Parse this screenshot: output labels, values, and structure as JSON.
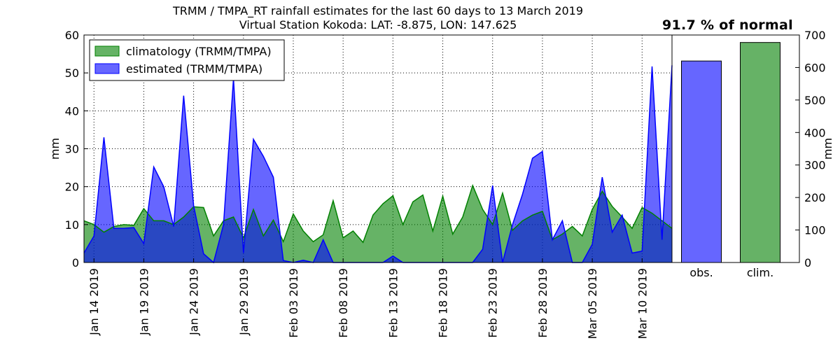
{
  "chart_data": {
    "type": "area",
    "title_line1": "TRMM / TMPA_RT rainfall estimates for the last 60 days to 13 March 2019",
    "title_line2": "Virtual Station Kokoda: LAT: -8.875, LON: 147.625",
    "percent_label": "91.7 % of normal",
    "ylabel_left": "mm",
    "ylabel_right": "mm",
    "ylim_left": [
      0,
      60
    ],
    "yticks_left": [
      "0",
      "10",
      "20",
      "30",
      "40",
      "50",
      "60"
    ],
    "ylim_right": [
      0,
      700
    ],
    "yticks_right": [
      "0",
      "100",
      "200",
      "300",
      "400",
      "500",
      "600",
      "700"
    ],
    "xlim_days": [
      -1,
      58
    ],
    "xticks": [
      {
        "day": 0,
        "label": "Jan 14 2019"
      },
      {
        "day": 5,
        "label": "Jan 19 2019"
      },
      {
        "day": 10,
        "label": "Jan 24 2019"
      },
      {
        "day": 15,
        "label": "Jan 29 2019"
      },
      {
        "day": 20,
        "label": "Feb 03 2019"
      },
      {
        "day": 25,
        "label": "Feb 08 2019"
      },
      {
        "day": 30,
        "label": "Feb 13 2019"
      },
      {
        "day": 35,
        "label": "Feb 18 2019"
      },
      {
        "day": 40,
        "label": "Feb 23 2019"
      },
      {
        "day": 45,
        "label": "Feb 28 2019"
      },
      {
        "day": 50,
        "label": "Mar 05 2019"
      },
      {
        "day": 55,
        "label": "Mar 10 2019"
      }
    ],
    "legend": [
      "climatology (TRMM/TMPA)",
      "estimated (TRMM/TMPA)"
    ],
    "x_days": [
      -1,
      0,
      1,
      2,
      3,
      4,
      5,
      6,
      7,
      8,
      9,
      10,
      11,
      12,
      13,
      14,
      15,
      16,
      17,
      18,
      19,
      20,
      21,
      22,
      23,
      24,
      25,
      26,
      27,
      28,
      29,
      30,
      31,
      32,
      33,
      34,
      35,
      36,
      37,
      38,
      39,
      40,
      41,
      42,
      43,
      44,
      45,
      46,
      47,
      48,
      49,
      50,
      51,
      52,
      53,
      54,
      55,
      56,
      57,
      58
    ],
    "series": [
      {
        "name": "climatology (TRMM/TMPA)",
        "color": "#008000",
        "values": [
          11.0,
          10.0,
          8.0,
          9.5,
          10.0,
          9.8,
          14.2,
          11.0,
          11.0,
          10.0,
          12.0,
          14.7,
          14.5,
          7.0,
          11.0,
          12.0,
          6.5,
          14.0,
          7.0,
          11.2,
          5.5,
          12.8,
          8.3,
          5.5,
          7.3,
          16.3,
          6.5,
          8.3,
          5.3,
          12.5,
          15.5,
          17.6,
          10.0,
          16.0,
          17.8,
          8.3,
          17.5,
          7.5,
          12.0,
          20.3,
          14.0,
          10.0,
          18.3,
          8.5,
          11.0,
          12.5,
          13.5,
          6.0,
          7.5,
          9.5,
          7.0,
          14.0,
          18.8,
          14.8,
          12.0,
          9.0,
          14.5,
          13.0,
          11.0,
          9.0
        ]
      },
      {
        "name": "estimated (TRMM/TMPA)",
        "color": "#0000ff",
        "values": [
          2.5,
          7.0,
          33.0,
          9.0,
          9.0,
          9.2,
          5.0,
          25.2,
          20.0,
          9.5,
          44.0,
          15.0,
          2.3,
          0.0,
          10.0,
          48.5,
          2.5,
          32.5,
          28.0,
          22.5,
          0.5,
          0.0,
          0.6,
          0.0,
          6.0,
          0.0,
          0.0,
          0.0,
          0.0,
          0.0,
          0.0,
          1.7,
          0.0,
          0.0,
          0.0,
          0.0,
          0.0,
          0.0,
          0.0,
          0.0,
          3.5,
          20.3,
          0.0,
          10.0,
          18.0,
          27.5,
          29.3,
          6.0,
          11.0,
          0.0,
          0.0,
          4.8,
          22.5,
          8.0,
          12.5,
          2.5,
          3.0,
          51.7,
          6.0,
          52.0
        ]
      }
    ],
    "bars": {
      "type": "bar",
      "categories": [
        "obs.",
        "clim."
      ],
      "values": [
        620,
        677
      ],
      "colors": [
        "#6666ff",
        "#66b266"
      ]
    }
  }
}
